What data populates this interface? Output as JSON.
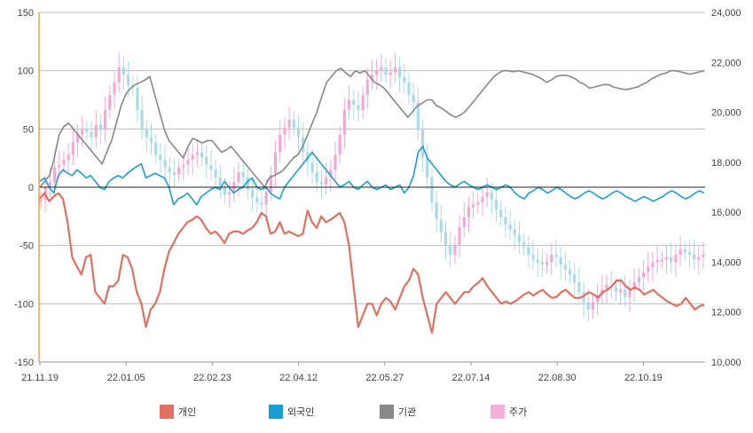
{
  "chart_data": {
    "type": "line",
    "title": "",
    "left_axis": {
      "ylim": [
        -150,
        150
      ],
      "ticks": [
        "150",
        "100",
        "50",
        "0",
        "-50",
        "-100",
        "-150"
      ]
    },
    "right_axis": {
      "ylim": [
        10000,
        24000
      ],
      "ticks": [
        "24,000",
        "22,000",
        "20,000",
        "18,000",
        "16,000",
        "14,000",
        "12,000",
        "10,000"
      ]
    },
    "x_ticks": [
      "21.11.19",
      "22.01.05",
      "22.02.23",
      "22.04.12",
      "22.05.27",
      "22.07.14",
      "22.08.30",
      "22.10.19"
    ],
    "grid": true,
    "legend_position": "bottom",
    "series": [
      {
        "name": "개인",
        "color": "#e07060",
        "axis": "left",
        "values": [
          -10,
          -5,
          -12,
          -8,
          -5,
          -10,
          -30,
          -60,
          -68,
          -75,
          -60,
          -58,
          -90,
          -95,
          -100,
          -85,
          -85,
          -80,
          -58,
          -60,
          -70,
          -90,
          -100,
          -120,
          -105,
          -100,
          -90,
          -70,
          -55,
          -48,
          -40,
          -35,
          -30,
          -28,
          -25,
          -28,
          -35,
          -40,
          -38,
          -42,
          -48,
          -40,
          -38,
          -38,
          -40,
          -37,
          -35,
          -30,
          -22,
          -25,
          -40,
          -38,
          -30,
          -40,
          -38,
          -40,
          -42,
          -40,
          -20,
          -30,
          -35,
          -25,
          -30,
          -28,
          -25,
          -22,
          -30,
          -50,
          -85,
          -120,
          -110,
          -100,
          -100,
          -110,
          -100,
          -95,
          -98,
          -105,
          -95,
          -85,
          -80,
          -70,
          -75,
          -95,
          -110,
          -125,
          -100,
          -95,
          -90,
          -95,
          -100,
          -95,
          -90,
          -90,
          -85,
          -82,
          -78,
          -85,
          -90,
          -95,
          -100,
          -98,
          -100,
          -98,
          -95,
          -92,
          -90,
          -93,
          -90,
          -88,
          -92,
          -95,
          -94,
          -90,
          -88,
          -92,
          -95,
          -95,
          -93,
          -90,
          -92,
          -95,
          -90,
          -88,
          -85,
          -80,
          -80,
          -85,
          -88,
          -86,
          -88,
          -92,
          -90,
          -88,
          -92,
          -95,
          -98,
          -100,
          -102,
          -100,
          -95,
          -100,
          -105,
          -102,
          -101
        ]
      },
      {
        "name": "외국인",
        "color": "#1aa0d0",
        "axis": "left",
        "values": [
          5,
          8,
          0,
          -5,
          10,
          15,
          12,
          10,
          15,
          12,
          8,
          10,
          5,
          0,
          -2,
          5,
          8,
          10,
          8,
          12,
          15,
          18,
          20,
          8,
          10,
          12,
          10,
          8,
          0,
          -15,
          -10,
          -8,
          -5,
          -10,
          -15,
          -8,
          -5,
          -2,
          0,
          -2,
          5,
          0,
          -5,
          -2,
          0,
          5,
          8,
          0,
          -2,
          0,
          -5,
          -8,
          -10,
          0,
          5,
          10,
          15,
          20,
          25,
          30,
          25,
          20,
          15,
          10,
          5,
          0,
          2,
          5,
          0,
          -2,
          2,
          5,
          0,
          -2,
          0,
          2,
          -2,
          0,
          2,
          -5,
          0,
          10,
          30,
          35,
          25,
          20,
          15,
          10,
          5,
          2,
          0,
          3,
          5,
          2,
          0,
          -2,
          0,
          2,
          0,
          -2,
          0,
          2,
          0,
          -5,
          -8,
          -10,
          -5,
          -3,
          0,
          -2,
          -5,
          -3,
          0,
          -2,
          -5,
          -8,
          -10,
          -8,
          -5,
          -3,
          -5,
          -8,
          -10,
          -8,
          -5,
          -3,
          -5,
          -8,
          -10,
          -12,
          -10,
          -8,
          -10,
          -12,
          -10,
          -8,
          -5,
          -3,
          -5,
          -8,
          -10,
          -8,
          -5,
          -3,
          -5
        ]
      },
      {
        "name": "기관",
        "color": "#888888",
        "axis": "left",
        "values": [
          0,
          5,
          10,
          25,
          45,
          52,
          55,
          50,
          45,
          40,
          35,
          30,
          25,
          20,
          30,
          40,
          55,
          70,
          80,
          85,
          88,
          90,
          92,
          95,
          80,
          65,
          50,
          40,
          35,
          30,
          25,
          35,
          42,
          40,
          38,
          40,
          40,
          35,
          30,
          32,
          35,
          30,
          25,
          20,
          15,
          10,
          5,
          0,
          8,
          10,
          12,
          15,
          20,
          25,
          28,
          35,
          45,
          55,
          65,
          78,
          90,
          95,
          100,
          102,
          98,
          95,
          100,
          98,
          100,
          95,
          90,
          88,
          85,
          80,
          75,
          70,
          65,
          60,
          65,
          70,
          72,
          75,
          75,
          70,
          68,
          65,
          62,
          60,
          62,
          65,
          70,
          75,
          80,
          85,
          90,
          95,
          98,
          100,
          100,
          99,
          100,
          99,
          98,
          97,
          95,
          93,
          90,
          92,
          95,
          96,
          96,
          95,
          93,
          90,
          88,
          85,
          86,
          87,
          88,
          88,
          86,
          85,
          84,
          84,
          85,
          86,
          88,
          90,
          93,
          95,
          97,
          98,
          100,
          100,
          99,
          98,
          97,
          98,
          99,
          100
        ]
      }
    ],
    "price_series": {
      "name": "주가",
      "color": "#f4b0d8",
      "axis": "right",
      "close": [
        16500,
        17000,
        17200,
        17800,
        17900,
        18100,
        18300,
        18800,
        19100,
        19300,
        19200,
        19000,
        19500,
        19300,
        20100,
        20700,
        21200,
        21800,
        21500,
        21100,
        21000,
        20100,
        19300,
        19000,
        18800,
        18300,
        18100,
        17800,
        17600,
        17500,
        17800,
        17900,
        18100,
        18300,
        18400,
        18200,
        17900,
        17700,
        17400,
        17000,
        16700,
        16800,
        17200,
        17600,
        17400,
        16900,
        16600,
        16400,
        16300,
        16800,
        17500,
        18400,
        19100,
        19400,
        19700,
        19400,
        19000,
        18400,
        18000,
        17600,
        17200,
        17100,
        17400,
        17700,
        18300,
        19100,
        20100,
        20500,
        20300,
        20100,
        20700,
        21300,
        21500,
        21700,
        21800,
        21500,
        21600,
        21800,
        21400,
        21200,
        20700,
        20400,
        19300,
        18200,
        17400,
        16400,
        15700,
        15200,
        14700,
        14300,
        14700,
        15400,
        15800,
        16200,
        16300,
        16400,
        16600,
        16800,
        16500,
        16100,
        15800,
        15500,
        15300,
        15100,
        14800,
        14600,
        14300,
        14100,
        14000,
        13900,
        14000,
        14300,
        14200,
        13900,
        13700,
        13500,
        13200,
        12800,
        12400,
        12100,
        12400,
        12700,
        12900,
        13100,
        13000,
        12800,
        12900,
        12600,
        12900,
        13200,
        13400,
        13600,
        13800,
        14000,
        14100,
        14100,
        14200,
        14000,
        14300,
        14500,
        14400,
        14300,
        14100,
        14200,
        14300
      ]
    }
  },
  "legend": [
    {
      "label": "개인",
      "color": "#e07060"
    },
    {
      "label": "외국인",
      "color": "#1aa0d0"
    },
    {
      "label": "기관",
      "color": "#888888"
    },
    {
      "label": "주가",
      "color": "#f4b0d8"
    }
  ]
}
